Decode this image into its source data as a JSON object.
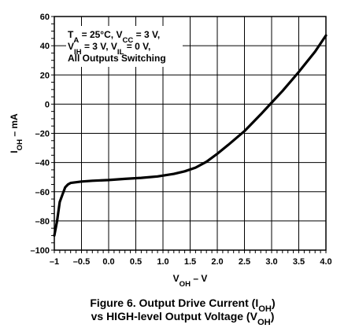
{
  "chart_data": {
    "type": "line",
    "xlabel": {
      "main": "V",
      "sub": "OH",
      "suffix": " – V"
    },
    "ylabel": {
      "main": "I",
      "sub": "OH",
      "suffix": " – mA"
    },
    "xlim": [
      -1,
      4
    ],
    "ylim": [
      -100,
      60
    ],
    "x_ticks": [
      -1,
      -0.5,
      0,
      0.5,
      1,
      1.5,
      2,
      2.5,
      3,
      3.5,
      4
    ],
    "x_tick_labels": [
      "–1",
      "–0.5",
      "0.0",
      "0.5",
      "1.0",
      "1.5",
      "2.0",
      "2.5",
      "3.0",
      "3.5",
      "4.0"
    ],
    "y_ticks": [
      -100,
      -80,
      -60,
      -40,
      -20,
      0,
      20,
      40,
      60
    ],
    "y_tick_labels": [
      "–100",
      "–80",
      "–60",
      "–40",
      "–20",
      "0",
      "20",
      "40",
      "60"
    ],
    "grid": true,
    "series": [
      {
        "x": [
          -1.0,
          -0.95,
          -0.9,
          -0.85,
          -0.8,
          -0.75,
          -0.7,
          -0.6,
          -0.5,
          -0.3,
          0.0,
          0.3,
          0.6,
          0.9,
          1.2,
          1.4,
          1.6,
          1.8,
          2.0,
          2.2,
          2.5,
          2.8,
          3.0,
          3.2,
          3.5,
          3.8,
          4.0
        ],
        "y": [
          -90,
          -80,
          -67,
          -62,
          -57,
          -55,
          -54,
          -53.5,
          -53,
          -52.5,
          -52,
          -51.2,
          -50.5,
          -49.5,
          -47.8,
          -46,
          -43.5,
          -39.5,
          -34,
          -28,
          -18.5,
          -7,
          1,
          9,
          22,
          36,
          47
        ]
      }
    ],
    "annotation": {
      "lines": [
        [
          {
            "t": "T"
          },
          {
            "t": "A",
            "sub": true
          },
          {
            "t": " = 25°C, V"
          },
          {
            "t": "CC",
            "sub": true
          },
          {
            "t": " = 3 V,"
          }
        ],
        [
          {
            "t": "V"
          },
          {
            "t": "IH",
            "sub": true
          },
          {
            "t": " = 3 V, V"
          },
          {
            "t": "IL",
            "sub": true
          },
          {
            "t": " = 0 V,"
          }
        ],
        [
          {
            "t": "All Outputs Switching"
          }
        ]
      ]
    },
    "caption": {
      "lines": [
        [
          {
            "t": "Figure 6. Output Drive Current (I"
          },
          {
            "t": "OH",
            "sub": true
          },
          {
            "t": ")"
          }
        ],
        [
          {
            "t": "vs HIGH-level Output Voltage (V"
          },
          {
            "t": "OH",
            "sub": true
          },
          {
            "t": ")"
          }
        ]
      ]
    }
  }
}
